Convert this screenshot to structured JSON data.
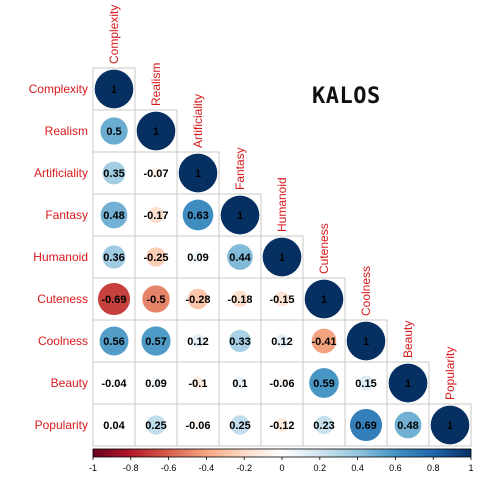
{
  "chart_data": {
    "type": "heatmap",
    "variables": [
      "Complexity",
      "Realism",
      "Artificiality",
      "Fantasy",
      "Humanoid",
      "Cuteness",
      "Coolness",
      "Beauty",
      "Popularity"
    ],
    "lower_triangle": [
      [
        1
      ],
      [
        0.5,
        1
      ],
      [
        0.35,
        -0.07,
        1
      ],
      [
        0.48,
        -0.17,
        0.63,
        1
      ],
      [
        0.36,
        -0.25,
        0.09,
        0.44,
        1
      ],
      [
        -0.69,
        -0.5,
        -0.28,
        -0.18,
        -0.15,
        1
      ],
      [
        0.56,
        0.57,
        0.12,
        0.33,
        0.12,
        -0.41,
        1
      ],
      [
        -0.04,
        0.09,
        -0.1,
        0.1,
        -0.06,
        0.59,
        0.15,
        1
      ],
      [
        0.04,
        0.25,
        -0.06,
        0.25,
        -0.12,
        0.23,
        0.69,
        0.48,
        1
      ]
    ],
    "color_scale": {
      "range": [
        -1,
        1
      ],
      "ticks": [
        -1,
        -0.8,
        -0.6,
        -0.4,
        -0.2,
        0,
        0.2,
        0.4,
        0.6,
        0.8,
        1
      ],
      "tick_labels": [
        "-1",
        "-0.8",
        "-0.6",
        "-0.4",
        "-0.2",
        "0",
        "0.2",
        "0.4",
        "0.6",
        "0.8",
        "1"
      ],
      "colors": [
        "#67001f",
        "#b2182b",
        "#d6604d",
        "#f4a582",
        "#fddbc7",
        "#ffffff",
        "#d1e5f0",
        "#92c5de",
        "#4393c3",
        "#2166ac",
        "#053061"
      ]
    },
    "label_color": "#d7191c",
    "annotation": "KALOS",
    "grid": true,
    "legend": "bottom"
  }
}
